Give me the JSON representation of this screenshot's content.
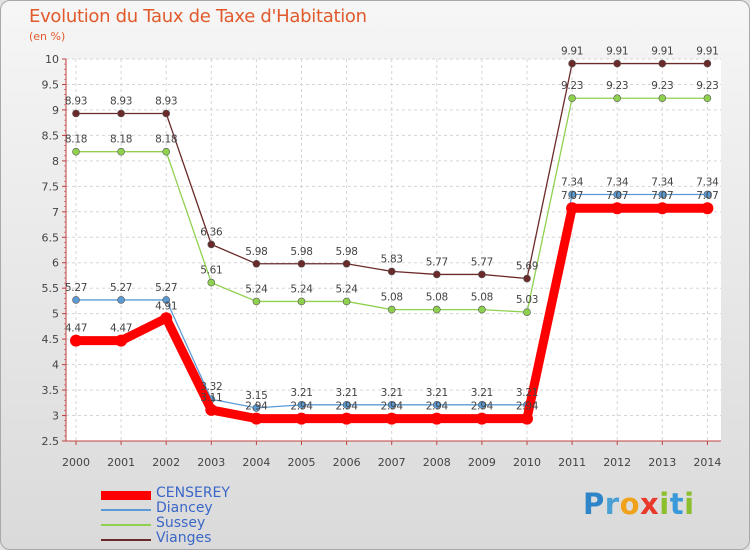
{
  "chart_data": {
    "type": "line",
    "title": "Evolution du Taux de Taxe d'Habitation",
    "ylabel": "(en %)",
    "xlabel": "",
    "ylim": [
      2.5,
      10
    ],
    "yticks": [
      2.5,
      3,
      3.5,
      4,
      4.5,
      5,
      5.5,
      6,
      6.5,
      7,
      7.5,
      8,
      8.5,
      9,
      9.5,
      10
    ],
    "categories": [
      "2000",
      "2001",
      "2002",
      "2003",
      "2004",
      "2005",
      "2006",
      "2007",
      "2008",
      "2009",
      "2010",
      "2011",
      "2012",
      "2013",
      "2014"
    ],
    "series": [
      {
        "name": "CENSEREY",
        "color": "#ff0000",
        "bold": true,
        "values": [
          4.47,
          4.47,
          4.91,
          3.11,
          2.94,
          2.94,
          2.94,
          2.94,
          2.94,
          2.94,
          2.94,
          7.07,
          7.07,
          7.07,
          7.07
        ],
        "labels": [
          "4.47",
          "4.47",
          "4.91",
          "3.11",
          "2.94",
          "2.94",
          "2.94",
          "2.94",
          "2.94",
          "2.94",
          "2.94",
          "7.07",
          "7.07",
          "7.07",
          "7.07"
        ]
      },
      {
        "name": "Diancey",
        "color": "#5b9bd5",
        "bold": false,
        "values": [
          5.27,
          5.27,
          5.27,
          3.32,
          3.15,
          3.21,
          3.21,
          3.21,
          3.21,
          3.21,
          3.21,
          7.34,
          7.34,
          7.34,
          7.34
        ],
        "labels": [
          "5.27",
          "5.27",
          "5.27",
          "3.32",
          "3.15",
          "3.21",
          "3.21",
          "3.21",
          "3.21",
          "3.21",
          "3.21",
          "7.34",
          "7.34",
          "7.34",
          "7.34"
        ]
      },
      {
        "name": "Sussey",
        "color": "#8fd14f",
        "bold": false,
        "values": [
          8.18,
          8.18,
          8.18,
          5.61,
          5.24,
          5.24,
          5.24,
          5.08,
          5.08,
          5.08,
          5.03,
          9.23,
          9.23,
          9.23,
          9.23
        ],
        "labels": [
          "8.18",
          "8.18",
          "8.18",
          "5.61",
          "5.24",
          "5.24",
          "5.24",
          "5.08",
          "5.08",
          "5.08",
          "5.03",
          "9.23",
          "9.23",
          "9.23",
          "9.23"
        ]
      },
      {
        "name": "Vianges",
        "color": "#6b2a2a",
        "bold": false,
        "values": [
          8.93,
          8.93,
          8.93,
          6.36,
          5.98,
          5.98,
          5.98,
          5.83,
          5.77,
          5.77,
          5.69,
          9.91,
          9.91,
          9.91,
          9.91
        ],
        "labels": [
          "8.93",
          "8.93",
          "8.93",
          "6.36",
          "5.98",
          "5.98",
          "5.98",
          "5.83",
          "5.77",
          "5.77",
          "5.69",
          "9.91",
          "9.91",
          "9.91",
          "9.91"
        ]
      }
    ]
  },
  "branding": {
    "logo_text": "Proxiti"
  }
}
